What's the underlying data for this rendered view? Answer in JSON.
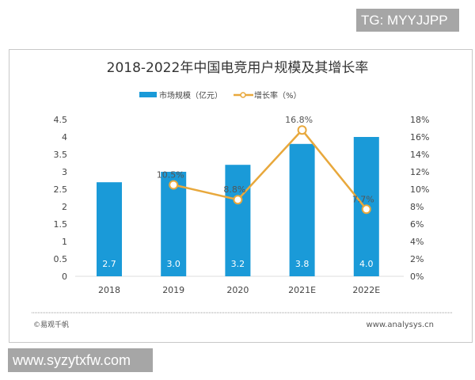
{
  "watermarks": {
    "top": "TG: MYYJJPP",
    "bottom": "www.syzytxfw.com"
  },
  "footer": {
    "source": "©易观千帆",
    "url": "www.analysys.cn"
  },
  "chart_data": {
    "type": "bar+line",
    "title": "2018-2022年中国电竞用户规模及其增长率",
    "categories": [
      "2018",
      "2019",
      "2020",
      "2021E",
      "2022E"
    ],
    "series": [
      {
        "name": "市场规模（亿元）",
        "type": "bar",
        "axis": "left",
        "values": [
          2.7,
          3.0,
          3.2,
          3.8,
          4.0
        ],
        "labels": [
          "2.7",
          "3.0",
          "3.2",
          "3.8",
          "4.0"
        ],
        "color": "#1a9ad8"
      },
      {
        "name": "增长率（%）",
        "type": "line",
        "axis": "right",
        "values": [
          null,
          10.5,
          8.8,
          16.8,
          7.7
        ],
        "labels": [
          "",
          "10.5%",
          "8.8%",
          "16.8%",
          "7.7%"
        ],
        "color": "#e8a83c"
      }
    ],
    "y_left": {
      "range": [
        0,
        4.5
      ],
      "ticks": [
        "0",
        "0.5",
        "1",
        "1.5",
        "2",
        "2.5",
        "3",
        "3.5",
        "4",
        "4.5"
      ]
    },
    "y_right": {
      "range": [
        0,
        18
      ],
      "ticks": [
        "0%",
        "2%",
        "4%",
        "6%",
        "8%",
        "10%",
        "12%",
        "14%",
        "16%",
        "18%"
      ]
    },
    "legend_placement": "top-center",
    "grid": false
  }
}
